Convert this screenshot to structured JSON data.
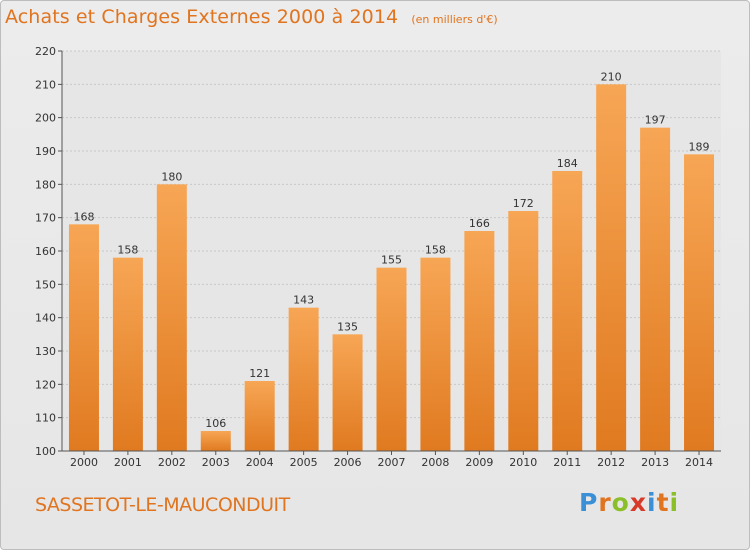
{
  "header": {
    "title": "Achats et Charges Externes 2000 à 2014",
    "unit": "(en milliers d'€)"
  },
  "footer": {
    "city": "SASSETOT-LE-MAUCONDUIT",
    "brand": "Proxiti"
  },
  "colors": {
    "accent": "#e0741f",
    "bar_top": "#f7a655",
    "bar_bottom": "#e07a20",
    "brand_letters": [
      "#3a8fd6",
      "#e0741f",
      "#8bbf2a",
      "#d83a2a",
      "#3a8fd6",
      "#e0741f",
      "#8bbf2a"
    ]
  },
  "chart_data": {
    "type": "bar",
    "title": "Achats et Charges Externes 2000 à 2014",
    "subtitle": "(en milliers d'€)",
    "xlabel": "",
    "ylabel": "",
    "categories": [
      "2000",
      "2001",
      "2002",
      "2003",
      "2004",
      "2005",
      "2006",
      "2007",
      "2008",
      "2009",
      "2010",
      "2011",
      "2012",
      "2013",
      "2014"
    ],
    "values": [
      168,
      158,
      180,
      106,
      121,
      143,
      135,
      155,
      158,
      166,
      172,
      184,
      210,
      197,
      189
    ],
    "ylim": [
      100,
      220
    ],
    "yticks": [
      100,
      110,
      120,
      130,
      140,
      150,
      160,
      170,
      180,
      190,
      200,
      210,
      220
    ],
    "grid": true,
    "data_labels": true
  }
}
